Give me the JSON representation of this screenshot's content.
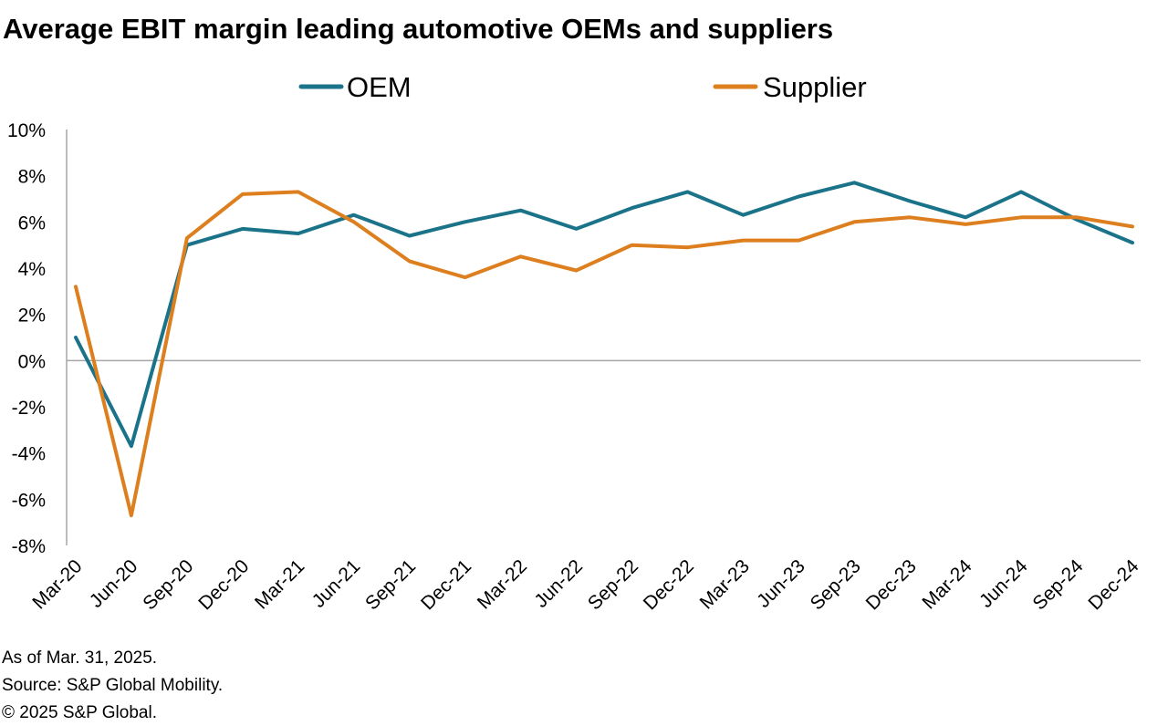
{
  "chart_data": {
    "type": "line",
    "title": "Average EBIT margin leading automotive OEMs and suppliers",
    "xlabel": "",
    "ylabel": "",
    "ylim": [
      -8,
      10
    ],
    "y_ticks": [
      "10%",
      "8%",
      "6%",
      "4%",
      "2%",
      "0%",
      "-2%",
      "-4%",
      "-6%",
      "-8%"
    ],
    "y_tick_values": [
      10,
      8,
      6,
      4,
      2,
      0,
      -2,
      -4,
      -6,
      -8
    ],
    "categories": [
      "Mar-20",
      "Jun-20",
      "Sep-20",
      "Dec-20",
      "Mar-21",
      "Jun-21",
      "Sep-21",
      "Dec-21",
      "Mar-22",
      "Jun-22",
      "Sep-22",
      "Dec-22",
      "Mar-23",
      "Jun-23",
      "Sep-23",
      "Dec-23",
      "Mar-24",
      "Jun-24",
      "Sep-24",
      "Dec-24"
    ],
    "series": [
      {
        "name": "OEM",
        "color": "#1a7389",
        "values": [
          1.0,
          -3.7,
          5.0,
          5.7,
          5.5,
          6.3,
          5.4,
          6.0,
          6.5,
          5.7,
          6.6,
          7.3,
          6.3,
          7.1,
          7.7,
          6.9,
          6.2,
          7.3,
          6.1,
          5.1
        ]
      },
      {
        "name": "Supplier",
        "color": "#dd7f1e",
        "values": [
          3.2,
          -6.7,
          5.3,
          7.2,
          7.3,
          6.0,
          4.3,
          3.6,
          4.5,
          3.9,
          5.0,
          4.9,
          5.2,
          5.2,
          6.0,
          6.2,
          5.9,
          6.2,
          6.2,
          5.8
        ]
      }
    ],
    "grid": false,
    "legend_position": "top"
  },
  "footnotes": [
    "As of Mar. 31, 2025.",
    "Source: S&P Global Mobility.",
    "© 2025 S&P Global."
  ]
}
